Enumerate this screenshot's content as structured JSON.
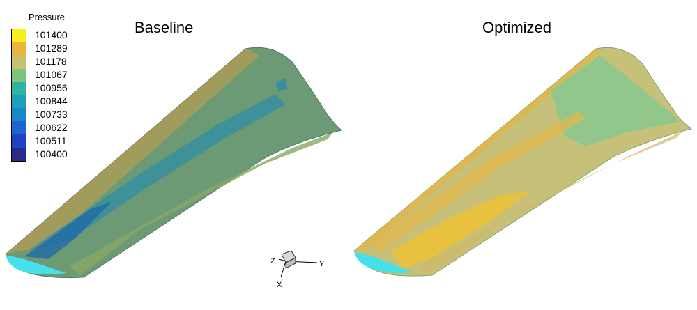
{
  "legend": {
    "title": "Pressure",
    "levels": [
      {
        "value": "101400",
        "color": "#f7f01e"
      },
      {
        "value": "101289",
        "color": "#e9b63f"
      },
      {
        "value": "101178",
        "color": "#c6c170"
      },
      {
        "value": "101067",
        "color": "#7ec47e"
      },
      {
        "value": "100956",
        "color": "#2fb3a3"
      },
      {
        "value": "100844",
        "color": "#1ba0b8"
      },
      {
        "value": "100733",
        "color": "#1b87c8"
      },
      {
        "value": "100622",
        "color": "#1d66cf"
      },
      {
        "value": "100511",
        "color": "#2242c4"
      },
      {
        "value": "100400",
        "color": "#2a2a8a"
      }
    ]
  },
  "panels": {
    "left_title": "Baseline",
    "right_title": "Optimized"
  },
  "axes": {
    "x_label": "X",
    "y_label": "Y",
    "z_label": "Z"
  }
}
